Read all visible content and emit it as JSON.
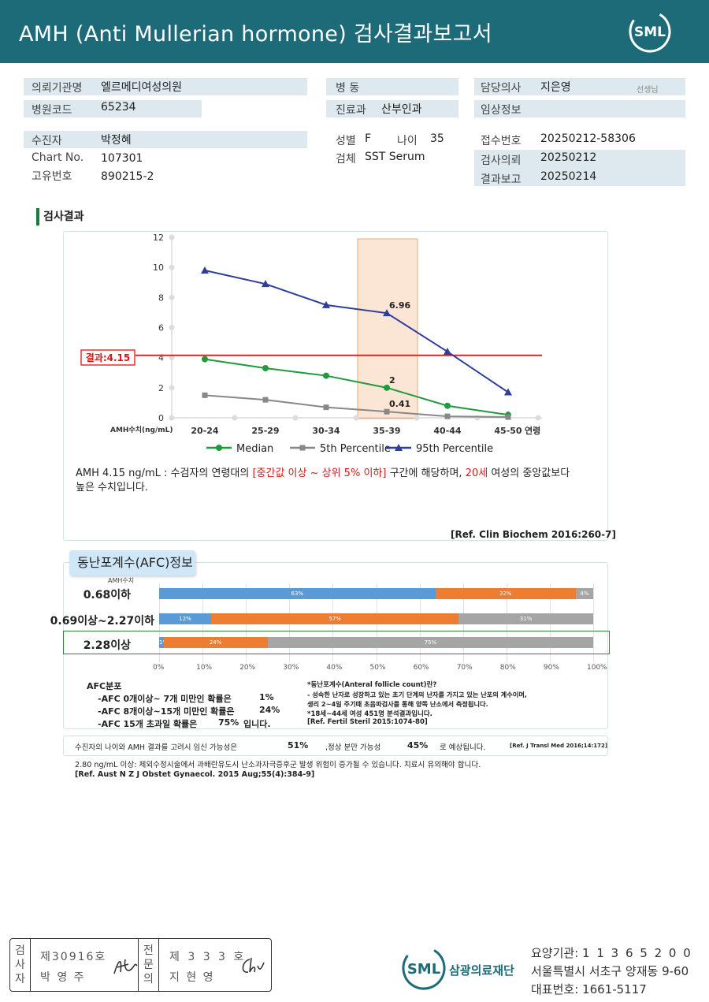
{
  "header": {
    "title": "AMH (Anti Mullerian hormone) 검사결과보고서",
    "logo_text": "SML"
  },
  "info": {
    "referring_org_label": "의뢰기관명",
    "referring_org": "엘르메디여성의원",
    "hospital_code_label": "병원코드",
    "hospital_code": "65234",
    "ward_label": "병    동",
    "department_label": "진료과",
    "department": "산부인과",
    "doctor_label": "담당의사",
    "doctor": "지은영",
    "doctor_suffix": "선생님",
    "clinical_label": "임상정보",
    "patient_label": "수진자",
    "patient": "박정혜",
    "chart_label": "Chart No.",
    "chart_no": "107301",
    "id_label": "고유번호",
    "id_no": "890215-2",
    "sex_label": "성별",
    "sex": "F",
    "age_label": "나이",
    "age": "35",
    "specimen_label": "검체",
    "specimen": "SST Serum",
    "receipt_label": "접수번호",
    "receipt_no": "20250212-58306",
    "request_label": "검사의뢰",
    "request_date": "20250212",
    "report_label": "결과보고",
    "report_date": "20250214"
  },
  "section_title": "검사결과",
  "chart_data": {
    "type": "line",
    "categories": [
      "20-24",
      "25-29",
      "30-34",
      "35-39",
      "40-44",
      "45-50"
    ],
    "x_suffix_label": "연령",
    "ylabel": "AMH수치(ng/mL)",
    "ylim": [
      0,
      12
    ],
    "yticks": [
      "0",
      "2",
      "4",
      "6",
      "8",
      "10",
      "12"
    ],
    "grid": false,
    "highlight_category": "35-39",
    "result_value": 4.15,
    "result_label": "결과:4.15",
    "legend_position": "bottom",
    "series": [
      {
        "name": "Median",
        "values": [
          3.9,
          3.3,
          2.8,
          2.0,
          0.8,
          0.2
        ],
        "color": "#1f9a3c",
        "marker": "circle"
      },
      {
        "name": "5th Percentile",
        "values": [
          1.5,
          1.2,
          0.7,
          0.41,
          0.1,
          0.05
        ],
        "color": "#888888",
        "marker": "square"
      },
      {
        "name": "95th Percentile",
        "values": [
          9.8,
          8.9,
          7.5,
          6.96,
          4.4,
          1.7
        ],
        "color": "#2e3e9b",
        "marker": "triangle"
      }
    ],
    "annotations": [
      {
        "series": 2,
        "index": 3,
        "text": "6.96"
      },
      {
        "series": 0,
        "index": 3,
        "text": "2"
      },
      {
        "series": 1,
        "index": 3,
        "text": "0.41"
      }
    ]
  },
  "interpretation": {
    "line1_a": "AMH  4.15 ng/mL : 수검자의 연령대의 ",
    "line1_b": "[중간값 이상 ~ 상위 5% 이하]",
    "line1_c": " 구간에 해당하며, ",
    "line1_d": "20세",
    "line1_e": " 여성의 중앙값보다",
    "line2": "높은 수치입니다.",
    "ref": "[Ref. Clin Biochem 2016:260-7]"
  },
  "afc": {
    "tab_title": "동난포계수(AFC)정보",
    "axis_caption": "AMH수치",
    "rows": [
      {
        "label": "0.68이하",
        "segments": [
          {
            "value": 63,
            "text": "63%",
            "color": "blue"
          },
          {
            "value": 32,
            "text": "32%",
            "color": "orange"
          },
          {
            "value": 4,
            "text": "4%",
            "color": "gray"
          }
        ]
      },
      {
        "label": "0.69이상~2.27이하",
        "segments": [
          {
            "value": 12,
            "text": "12%",
            "color": "blue"
          },
          {
            "value": 57,
            "text": "57%",
            "color": "orange"
          },
          {
            "value": 31,
            "text": "31%",
            "color": "gray"
          }
        ]
      },
      {
        "label": "2.28이상",
        "segments": [
          {
            "value": 1,
            "text": "1%",
            "color": "blue"
          },
          {
            "value": 24,
            "text": "24%",
            "color": "orange"
          },
          {
            "value": 75,
            "text": "75%",
            "color": "gray"
          }
        ]
      }
    ],
    "ticks": [
      "0%",
      "10%",
      "20%",
      "30%",
      "40%",
      "50%",
      "60%",
      "70%",
      "80%",
      "90%",
      "100%"
    ],
    "dist_title": "AFC분포",
    "dist1_text": "-AFC  0개이상~ 7개 미만인 확률은",
    "dist1_val": "1%",
    "dist2_text": "-AFC  8개이상~15개 미만인 확률은",
    "dist2_val": "24%",
    "dist3_text": "-AFC  15개 초과일 확률은",
    "dist3_val": "75%",
    "dist3_tail": "입니다.",
    "note_title": "*동난포계수(Anteral  follicle  count)란?",
    "note_line1": "- 성숙한 난자로 성장하고 있는 초기 단계의 난자를 가지고 있는 난포의 계수이며,",
    "note_line2": "  생리 2~4일 주기때 초음파검사를 통해 양쪽 난소에서 측정됩니다.",
    "note_line3": "*18세~44세 여성 451명 분석결과입니다.",
    "note_ref": "[Ref. Fertil Steril 2015:1074-80]"
  },
  "pregnancy": {
    "text_a": "수진자의  나이와 AMH 결과를 고려시 임신 가능성은",
    "pregnancy_val": "51%",
    "text_b": ",정상 분만 가능성",
    "delivery_val": "45%",
    "text_c": "로  예상됩니다.",
    "ref": "[Ref. J Transl Med 2016;14:172]"
  },
  "warning": {
    "line1": "2.80  ng/mL  이상: 체외수정시술에서 과배란유도시 난소과자극증후군 발생 위험이 증가될 수 있습니다. 치료시 유의해야 합니다.",
    "ref": "[Ref. Aust N Z J Obstet Gynaecol. 2015 Aug;55(4):384-9]"
  },
  "signature": {
    "inspector_label": "검사자",
    "inspector_no": "제30916호",
    "inspector_name": "박  영  주",
    "specialist_label": "전문의",
    "specialist_no": "제 3 3 3 호",
    "specialist_name": "지  현  영"
  },
  "footer": {
    "org_name": "삼광의료재단",
    "logo_text": "SML",
    "institution_label": "요양기관:",
    "institution_no": "1 1 3 6 5 2 0 0",
    "address": "서울특별시 서초구 양재동 9-60",
    "phone_label": "대표번호:",
    "phone": "1661-5117"
  }
}
